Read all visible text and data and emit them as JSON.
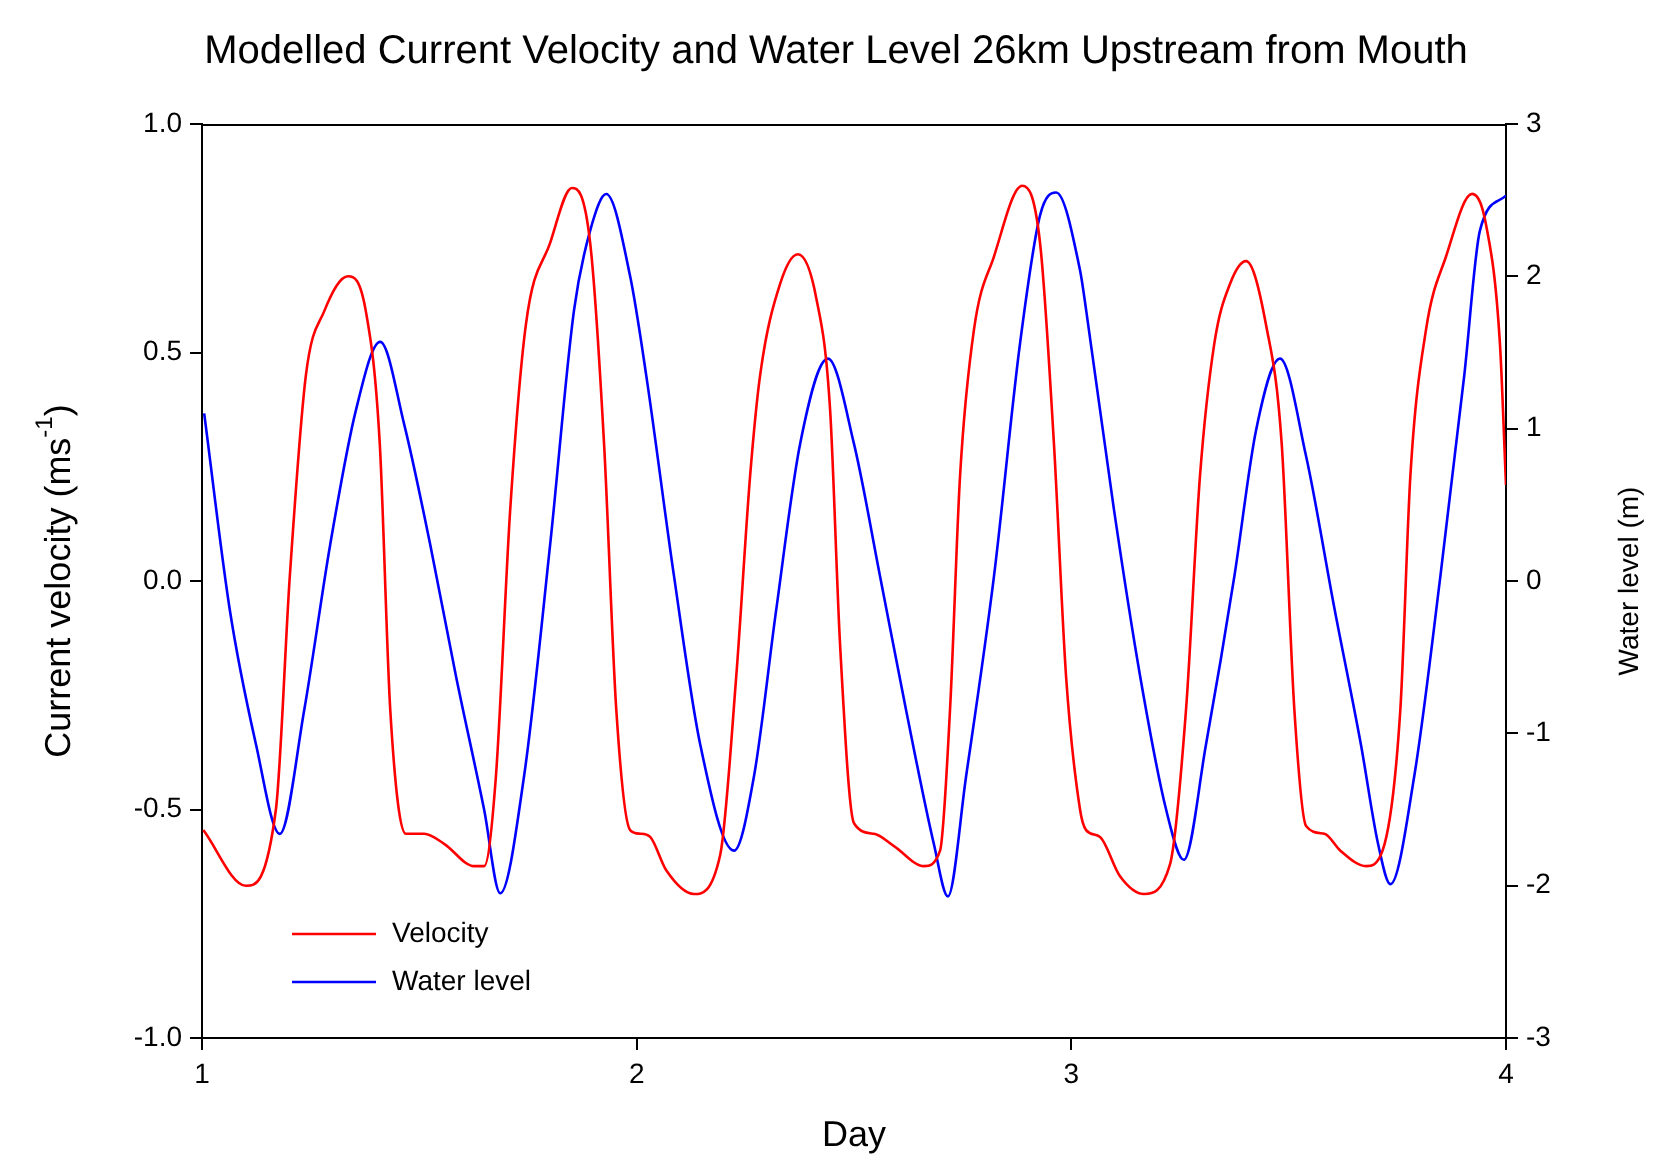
{
  "chart_data": {
    "type": "line",
    "title": "Modelled Current Velocity and Water Level 26km Upstream from Mouth",
    "xlabel": "Day",
    "ylabel": "Current velocity (ms$^{-1}$)",
    "y2label": "Water level (m)",
    "xlim": [
      1,
      4
    ],
    "xticks": [
      1,
      2,
      3,
      4
    ],
    "ylim": [
      -1,
      1
    ],
    "yticks": [
      {
        "value": -1,
        "label": "-1.0"
      },
      {
        "value": -0.5,
        "label": "-0.5"
      },
      {
        "value": 0,
        "label": "0.0"
      },
      {
        "value": 0.5,
        "label": "0.5"
      },
      {
        "value": 1,
        "label": "1.0"
      }
    ],
    "y2lim": [
      -3,
      3
    ],
    "y2ticks": [
      -3,
      -2,
      -1,
      0,
      1,
      2,
      3
    ],
    "legend": "bottom left",
    "grid": false,
    "marker": "none",
    "line_style": "solid",
    "series": [
      {
        "name": "Velocity",
        "color": "#ff0000",
        "x": [
          1.003,
          1.101,
          1.17,
          1.202,
          1.239,
          1.281,
          1.336,
          1.377,
          1.409,
          1.433,
          1.469,
          1.511,
          1.557,
          1.626,
          1.649,
          1.676,
          1.709,
          1.745,
          1.801,
          1.851,
          1.893,
          1.925,
          1.953,
          1.985,
          2.008,
          2.031,
          2.068,
          2.132,
          2.192,
          2.229,
          2.261,
          2.284,
          2.33,
          2.371,
          2.413,
          2.445,
          2.468,
          2.5,
          2.546,
          2.592,
          2.661,
          2.698,
          2.721,
          2.744,
          2.776,
          2.822,
          2.887,
          2.928,
          2.96,
          2.988,
          3.02,
          3.034,
          3.066,
          3.112,
          3.167,
          3.227,
          3.264,
          3.296,
          3.329,
          3.365,
          3.402,
          3.448,
          3.484,
          3.513,
          3.54,
          3.582,
          3.619,
          3.678,
          3.716,
          3.757,
          3.78,
          3.816,
          3.862,
          3.922,
          3.954,
          3.986,
          4.0
        ],
        "values": [
          -0.545,
          -0.667,
          -0.5,
          0.01,
          0.45,
          0.59,
          0.667,
          0.59,
          0.3,
          -0.28,
          -0.553,
          -0.553,
          -0.575,
          -0.624,
          -0.624,
          -0.43,
          0.155,
          0.56,
          0.74,
          0.86,
          0.74,
          0.3,
          -0.28,
          -0.545,
          -0.553,
          -0.56,
          -0.633,
          -0.685,
          -0.6,
          -0.21,
          0.23,
          0.45,
          0.65,
          0.715,
          0.62,
          0.375,
          -0.14,
          -0.53,
          -0.553,
          -0.58,
          -0.624,
          -0.59,
          -0.28,
          0.23,
          0.55,
          0.71,
          0.865,
          0.74,
          0.3,
          -0.21,
          -0.5,
          -0.545,
          -0.56,
          -0.646,
          -0.685,
          -0.62,
          -0.28,
          0.23,
          0.52,
          0.65,
          0.7,
          0.56,
          0.3,
          -0.28,
          -0.536,
          -0.553,
          -0.59,
          -0.624,
          -0.59,
          -0.28,
          0.23,
          0.55,
          0.71,
          0.847,
          0.78,
          0.52,
          0.21
        ]
      },
      {
        "name": "Water level",
        "color": "#0000ff",
        "axis": "y2",
        "x": [
          1.005,
          1.064,
          1.124,
          1.179,
          1.235,
          1.295,
          1.354,
          1.41,
          1.465,
          1.525,
          1.584,
          1.649,
          1.686,
          1.741,
          1.801,
          1.856,
          1.893,
          1.93,
          1.985,
          2.022,
          2.086,
          2.146,
          2.224,
          2.27,
          2.321,
          2.376,
          2.44,
          2.5,
          2.56,
          2.62,
          2.684,
          2.716,
          2.758,
          2.822,
          2.882,
          2.928,
          2.965,
          3.02,
          3.034,
          3.098,
          3.158,
          3.218,
          3.259,
          3.31,
          3.375,
          3.425,
          3.48,
          3.54,
          3.606,
          3.666,
          3.706,
          3.734,
          3.789,
          3.849,
          3.904,
          3.94,
          4.0
        ],
        "values": [
          1.1,
          -0.19,
          -1.07,
          -1.66,
          -0.85,
          0.24,
          1.12,
          1.57,
          1.03,
          0.24,
          -0.62,
          -1.5,
          -2.05,
          -1.28,
          0.24,
          1.78,
          2.3,
          2.54,
          2.0,
          1.35,
          0.03,
          -1.07,
          -1.77,
          -1.28,
          -0.19,
          0.9,
          1.46,
          0.9,
          0.03,
          -0.85,
          -1.73,
          -2.07,
          -1.28,
          0.03,
          1.56,
          2.4,
          2.55,
          2.04,
          1.78,
          0.47,
          -0.62,
          -1.5,
          -1.83,
          -1.07,
          0.03,
          0.99,
          1.46,
          0.82,
          -0.19,
          -1.07,
          -1.73,
          -1.99,
          -1.28,
          0.03,
          1.35,
          2.3,
          2.53
        ]
      }
    ]
  }
}
